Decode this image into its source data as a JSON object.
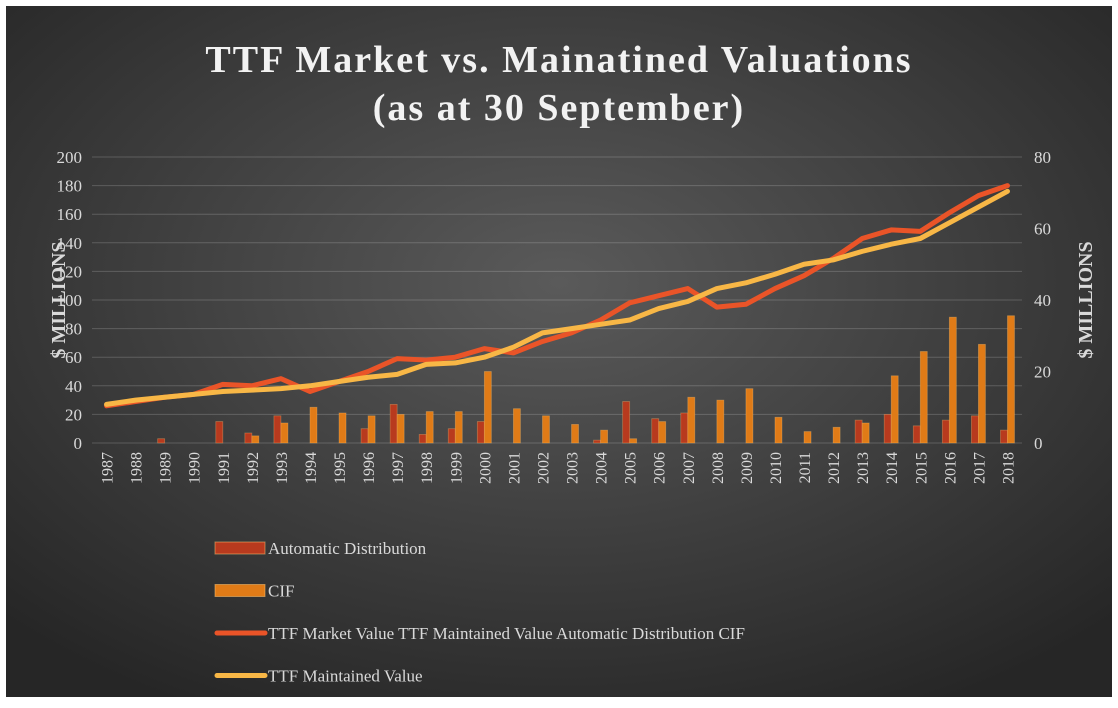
{
  "chart_data": {
    "type": "bar",
    "title": "TTF Market vs. Mainatined Valuations",
    "subtitle": "(as at 30 September)",
    "y_label": "$ MILLIONS",
    "y2_label": "$ MILLIONS",
    "categories": [
      "1987",
      "1988",
      "1989",
      "1990",
      "1991",
      "1992",
      "1993",
      "1994",
      "1995",
      "1996",
      "1997",
      "1998",
      "1999",
      "2000",
      "2001",
      "2002",
      "2003",
      "2004",
      "2005",
      "2006",
      "2007",
      "2008",
      "2009",
      "2010",
      "2011",
      "2012",
      "2013",
      "2014",
      "2015",
      "2016",
      "2017",
      "2018"
    ],
    "series": [
      {
        "name": "Automatic Distribution",
        "type": "bar",
        "axis": "y2",
        "color": "#b83a1e",
        "values": [
          0,
          0,
          1.2,
          0,
          6,
          2.8,
          7.6,
          0,
          0,
          4,
          10.8,
          2.4,
          4,
          6,
          0,
          0,
          0,
          0.8,
          11.6,
          6.8,
          8.4,
          0,
          0,
          0,
          0,
          0,
          6.4,
          8,
          4.8,
          6.4,
          7.6,
          3.6
        ]
      },
      {
        "name": "CIF",
        "type": "bar",
        "axis": "y2",
        "color": "#e07b17",
        "values": [
          0,
          0,
          0,
          0,
          0,
          2,
          5.6,
          10,
          8.4,
          7.6,
          8,
          8.8,
          8.8,
          20,
          9.6,
          7.6,
          5.2,
          3.6,
          1.2,
          6,
          12.8,
          12,
          15.2,
          7.2,
          3.2,
          4.4,
          5.6,
          18.8,
          25.6,
          35.2,
          27.6,
          35.6
        ]
      },
      {
        "name": "TTF Market Value TTF Maintained Value Automatic Distribution CIF",
        "type": "line",
        "color": "#ea5428",
        "values": [
          26,
          29,
          32,
          34,
          41,
          40,
          45,
          36,
          43,
          50,
          59,
          58,
          60,
          66,
          63,
          71,
          77,
          86,
          98,
          103,
          108,
          95,
          97,
          108,
          117,
          129,
          143,
          149,
          148,
          161,
          173,
          180
        ]
      },
      {
        "name": "TTF Maintained Value",
        "type": "line",
        "color": "#f8b746",
        "values": [
          27,
          30,
          32,
          34,
          36,
          37,
          38,
          40,
          43,
          46,
          48,
          55,
          56,
          60,
          67,
          77,
          80,
          83,
          86,
          94,
          99,
          108,
          112,
          118,
          125,
          128,
          134,
          139,
          143,
          154,
          165,
          176
        ]
      }
    ],
    "ylim": [
      0,
      200
    ],
    "yticks": [
      0,
      20,
      40,
      60,
      80,
      100,
      120,
      140,
      160,
      180,
      200
    ],
    "y2lim": [
      0,
      80
    ],
    "y2ticks": [
      0,
      20,
      40,
      60,
      80
    ],
    "grid": true
  }
}
